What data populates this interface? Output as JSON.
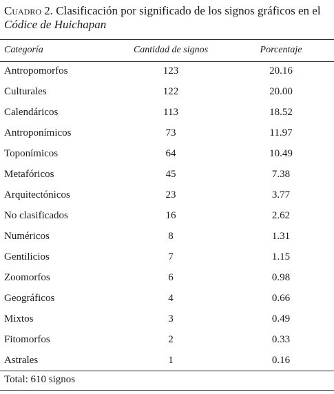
{
  "caption": {
    "label": "Cuadro 2.",
    "text_before": " Clasificación por significado de los signos gráficos en el ",
    "codex": "Códice de Huichapan"
  },
  "table": {
    "headers": {
      "category": "Categoría",
      "count": "Cantidad de signos",
      "percent": "Porcentaje"
    },
    "rows": [
      {
        "category": "Antropomorfos",
        "count": "123",
        "percent": "20.16"
      },
      {
        "category": "Culturales",
        "count": "122",
        "percent": "20.00"
      },
      {
        "category": "Calendáricos",
        "count": "113",
        "percent": "18.52"
      },
      {
        "category": "Antroponímicos",
        "count": "73",
        "percent": "11.97"
      },
      {
        "category": "Toponímicos",
        "count": "64",
        "percent": "10.49"
      },
      {
        "category": "Metafóricos",
        "count": "45",
        "percent": "7.38"
      },
      {
        "category": "Arquitectónicos",
        "count": "23",
        "percent": "3.77"
      },
      {
        "category": "No clasificados",
        "count": "16",
        "percent": "2.62"
      },
      {
        "category": "Numéricos",
        "count": "8",
        "percent": "1.31"
      },
      {
        "category": "Gentilicios",
        "count": "7",
        "percent": "1.15"
      },
      {
        "category": "Zoomorfos",
        "count": "6",
        "percent": "0.98"
      },
      {
        "category": "Geográficos",
        "count": "4",
        "percent": "0.66"
      },
      {
        "category": "Mixtos",
        "count": "3",
        "percent": "0.49"
      },
      {
        "category": "Fitomorfos",
        "count": "2",
        "percent": "0.33"
      },
      {
        "category": "Astrales",
        "count": "1",
        "percent": "0.16"
      }
    ],
    "total": "Total: 610 signos"
  }
}
